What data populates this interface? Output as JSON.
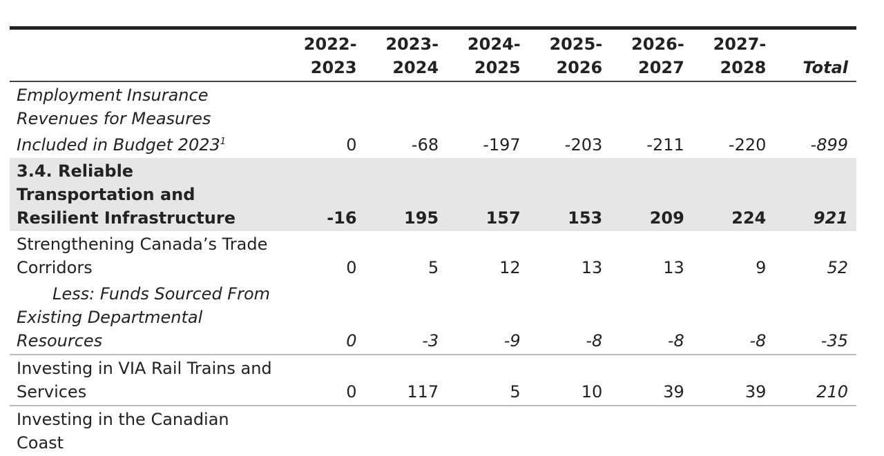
{
  "table": {
    "columns": [
      "2022-2023",
      "2023-2024",
      "2024-2025",
      "2025-2026",
      "2026-2027",
      "2027-2028",
      "Total"
    ],
    "rows": [
      {
        "label": "Employment Insurance Revenues for Measures Included in Budget 2023",
        "note": "1",
        "values": [
          "0",
          "-68",
          "-197",
          "-203",
          "-211",
          "-220",
          "-899"
        ]
      },
      {
        "label": "3.4. Reliable Transportation and Resilient Infrastructure",
        "values": [
          "-16",
          "195",
          "157",
          "153",
          "209",
          "224",
          "921"
        ]
      },
      {
        "label": "Strengthening Canada’s Trade Corridors",
        "values": [
          "0",
          "5",
          "12",
          "13",
          "13",
          "9",
          "52"
        ]
      },
      {
        "label": "Less: Funds Sourced From Existing Departmental Resources",
        "values": [
          "0",
          "-3",
          "-9",
          "-8",
          "-8",
          "-8",
          "-35"
        ]
      },
      {
        "label": "Investing in VIA Rail Trains and Services",
        "values": [
          "0",
          "117",
          "5",
          "10",
          "39",
          "39",
          "210"
        ]
      },
      {
        "label": "Investing in the Canadian Coast"
      }
    ]
  }
}
